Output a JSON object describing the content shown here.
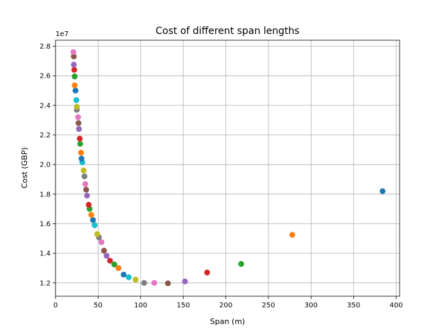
{
  "chart_data": {
    "type": "scatter",
    "title": "Cost of different span lengths",
    "xlabel": "Span (m)",
    "ylabel": "Cost (GBP)",
    "y_offset_label": "1e7",
    "xlim": [
      0,
      404
    ],
    "ylim": [
      11100000.0,
      28400000.0
    ],
    "xticks": [
      0,
      50,
      100,
      150,
      200,
      250,
      300,
      350,
      400
    ],
    "yticks": [
      12000000.0,
      14000000.0,
      16000000.0,
      18000000.0,
      20000000.0,
      22000000.0,
      24000000.0,
      26000000.0,
      28000000.0
    ],
    "ytick_labels": [
      "1.2",
      "1.4",
      "1.6",
      "1.8",
      "2.0",
      "2.2",
      "2.4",
      "2.6",
      "2.8"
    ],
    "grid": true,
    "palette": [
      "#1f77b4",
      "#ff7f0e",
      "#2ca02c",
      "#d62728",
      "#9467bd",
      "#8c564b",
      "#e377c2",
      "#7f7f7f",
      "#bcbd22",
      "#17becf"
    ],
    "points": [
      {
        "x": 384,
        "y": 18200000.0,
        "color": "#1f77b4"
      },
      {
        "x": 278,
        "y": 15250000.0,
        "color": "#ff7f0e"
      },
      {
        "x": 218,
        "y": 13280000.0,
        "color": "#2ca02c"
      },
      {
        "x": 178,
        "y": 12700000.0,
        "color": "#d62728"
      },
      {
        "x": 152,
        "y": 12100000.0,
        "color": "#9467bd"
      },
      {
        "x": 132,
        "y": 11970000.0,
        "color": "#8c564b"
      },
      {
        "x": 116,
        "y": 12000000.0,
        "color": "#e377c2"
      },
      {
        "x": 104,
        "y": 12000000.0,
        "color": "#7f7f7f"
      },
      {
        "x": 94,
        "y": 12220000.0,
        "color": "#bcbd22"
      },
      {
        "x": 86,
        "y": 12380000.0,
        "color": "#17becf"
      },
      {
        "x": 80,
        "y": 12560000.0,
        "color": "#1f77b4"
      },
      {
        "x": 74,
        "y": 13000000.0,
        "color": "#ff7f0e"
      },
      {
        "x": 69,
        "y": 13250000.0,
        "color": "#2ca02c"
      },
      {
        "x": 64,
        "y": 13500000.0,
        "color": "#d62728"
      },
      {
        "x": 60,
        "y": 13830000.0,
        "color": "#9467bd"
      },
      {
        "x": 57,
        "y": 14180000.0,
        "color": "#8c564b"
      },
      {
        "x": 54,
        "y": 14750000.0,
        "color": "#e377c2"
      },
      {
        "x": 51,
        "y": 15080000.0,
        "color": "#7f7f7f"
      },
      {
        "x": 49,
        "y": 15300000.0,
        "color": "#bcbd22"
      },
      {
        "x": 46,
        "y": 15900000.0,
        "color": "#17becf"
      },
      {
        "x": 44,
        "y": 16250000.0,
        "color": "#1f77b4"
      },
      {
        "x": 42,
        "y": 16600000.0,
        "color": "#ff7f0e"
      },
      {
        "x": 40,
        "y": 17000000.0,
        "color": "#2ca02c"
      },
      {
        "x": 39,
        "y": 17280000.0,
        "color": "#d62728"
      },
      {
        "x": 37,
        "y": 17900000.0,
        "color": "#9467bd"
      },
      {
        "x": 36,
        "y": 18300000.0,
        "color": "#8c564b"
      },
      {
        "x": 35,
        "y": 18680000.0,
        "color": "#e377c2"
      },
      {
        "x": 34,
        "y": 19200000.0,
        "color": "#7f7f7f"
      },
      {
        "x": 33,
        "y": 19600000.0,
        "color": "#bcbd22"
      },
      {
        "x": 31.5,
        "y": 20150000.0,
        "color": "#17becf"
      },
      {
        "x": 30.5,
        "y": 20400000.0,
        "color": "#1f77b4"
      },
      {
        "x": 30,
        "y": 20800000.0,
        "color": "#ff7f0e"
      },
      {
        "x": 29,
        "y": 21400000.0,
        "color": "#2ca02c"
      },
      {
        "x": 28.5,
        "y": 21750000.0,
        "color": "#d62728"
      },
      {
        "x": 27.5,
        "y": 22400000.0,
        "color": "#9467bd"
      },
      {
        "x": 27,
        "y": 22800000.0,
        "color": "#8c564b"
      },
      {
        "x": 26.5,
        "y": 23200000.0,
        "color": "#e377c2"
      },
      {
        "x": 25,
        "y": 23700000.0,
        "color": "#7f7f7f"
      },
      {
        "x": 25,
        "y": 23900000.0,
        "color": "#bcbd22"
      },
      {
        "x": 24.5,
        "y": 24350000.0,
        "color": "#17becf"
      },
      {
        "x": 23.5,
        "y": 25000000.0,
        "color": "#1f77b4"
      },
      {
        "x": 22.5,
        "y": 25350000.0,
        "color": "#ff7f0e"
      },
      {
        "x": 22.5,
        "y": 25950000.0,
        "color": "#2ca02c"
      },
      {
        "x": 22,
        "y": 26400000.0,
        "color": "#d62728"
      },
      {
        "x": 21.5,
        "y": 26750000.0,
        "color": "#9467bd"
      },
      {
        "x": 21.5,
        "y": 27300000.0,
        "color": "#8c564b"
      },
      {
        "x": 21,
        "y": 27600000.0,
        "color": "#e377c2"
      }
    ]
  }
}
